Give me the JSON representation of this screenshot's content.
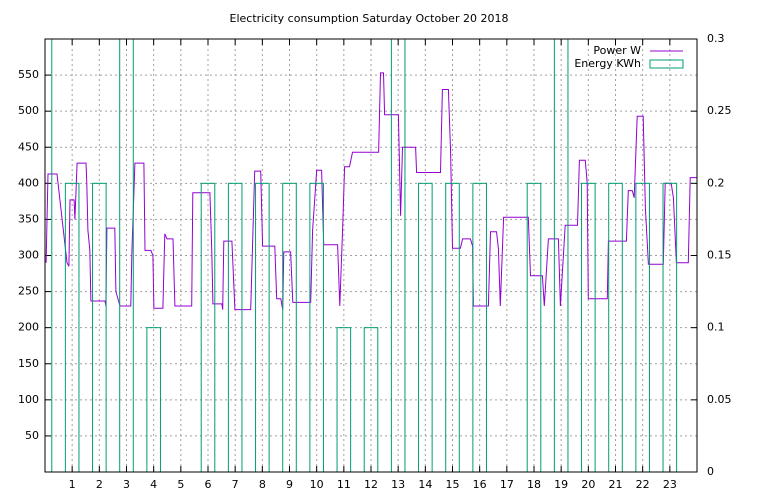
{
  "chart_data": {
    "type": "line",
    "title": "Electricity consumption Saturday October 20 2018",
    "xlim": [
      0,
      24
    ],
    "xticks": [
      1,
      2,
      3,
      4,
      5,
      6,
      7,
      8,
      9,
      10,
      11,
      12,
      13,
      14,
      15,
      16,
      17,
      18,
      19,
      20,
      21,
      22,
      23
    ],
    "ylim": [
      0,
      600
    ],
    "yticks": [
      50,
      100,
      150,
      200,
      250,
      300,
      350,
      400,
      450,
      500,
      550
    ],
    "y2lim": [
      0,
      0.3
    ],
    "y2ticks": [
      0,
      0.05,
      0.1,
      0.15,
      0.2,
      0.25,
      0.3
    ],
    "grid": true,
    "legend": "top-right",
    "series": [
      {
        "name": "Power W",
        "color": "#9400d3",
        "type": "line",
        "x": [
          0.04,
          0.11,
          0.44,
          0.81,
          0.88,
          0.92,
          1.07,
          1.1,
          1.18,
          1.51,
          1.54,
          1.58,
          1.65,
          1.69,
          2.21,
          2.24,
          2.28,
          2.57,
          2.61,
          2.76,
          3.16,
          3.2,
          3.31,
          3.64,
          3.68,
          3.9,
          3.97,
          4.01,
          4.34,
          4.41,
          4.49,
          4.71,
          4.78,
          5.4,
          5.44,
          6.07,
          6.14,
          6.18,
          6.51,
          6.54,
          6.58,
          6.88,
          6.99,
          7.57,
          7.72,
          7.94,
          8.01,
          8.46,
          8.53,
          8.68,
          8.75,
          8.79,
          9.04,
          9.12,
          9.78,
          9.85,
          10.0,
          10.18,
          10.26,
          10.77,
          10.85,
          10.96,
          11.03,
          11.21,
          11.32,
          12.28,
          12.35,
          12.46,
          12.5,
          13.01,
          13.09,
          13.16,
          13.64,
          13.68,
          14.56,
          14.63,
          14.85,
          14.93,
          15.0,
          15.29,
          15.37,
          15.66,
          15.74,
          15.77,
          16.32,
          16.4,
          16.62,
          16.69,
          16.76,
          16.88,
          17.79,
          17.87,
          18.31,
          18.38,
          18.53,
          18.9,
          18.97,
          19.15,
          19.6,
          19.67,
          19.89,
          19.96,
          20.0,
          20.7,
          20.74,
          21.4,
          21.47,
          21.62,
          21.69,
          21.8,
          22.02,
          22.1,
          22.21,
          22.76,
          22.83,
          23.05,
          23.13,
          23.24,
          23.68,
          23.75,
          23.99
        ],
        "values": [
          290,
          413,
          413,
          290,
          285,
          377,
          377,
          350,
          428,
          428,
          400,
          335,
          308,
          237,
          237,
          230,
          338,
          338,
          250,
          230,
          230,
          305,
          428,
          428,
          307,
          307,
          300,
          227,
          227,
          330,
          323,
          323,
          230,
          230,
          387,
          387,
          305,
          233,
          233,
          225,
          320,
          320,
          225,
          225,
          417,
          417,
          313,
          313,
          240,
          240,
          225,
          305,
          305,
          235,
          235,
          335,
          418,
          418,
          315,
          315,
          230,
          340,
          423,
          423,
          443,
          443,
          553,
          553,
          495,
          495,
          355,
          450,
          450,
          415,
          415,
          530,
          530,
          443,
          310,
          310,
          323,
          323,
          313,
          230,
          230,
          333,
          333,
          310,
          230,
          353,
          353,
          272,
          272,
          230,
          323,
          323,
          230,
          342,
          342,
          432,
          432,
          400,
          240,
          240,
          320,
          320,
          390,
          390,
          380,
          493,
          493,
          365,
          288,
          288,
          400,
          400,
          380,
          290,
          290,
          408,
          408
        ]
      },
      {
        "name": "Energy KWh",
        "color": "#009e73",
        "type": "boxes",
        "axis": "y2",
        "box_width": 0.5,
        "x": [
          0,
          1,
          2,
          3,
          4,
          5,
          6,
          7,
          8,
          9,
          10,
          11,
          12,
          13,
          14,
          15,
          16,
          17,
          18,
          19,
          20,
          21,
          22,
          23
        ],
        "values": [
          0.3,
          0.2,
          0.2,
          0.3,
          0.1,
          0,
          0.2,
          0.2,
          0.2,
          0.2,
          0.2,
          0.1,
          0.1,
          0.3,
          0.2,
          0.2,
          0.2,
          0,
          0.2,
          0.3,
          0.2,
          0.2,
          0.2,
          0.2
        ]
      }
    ]
  }
}
